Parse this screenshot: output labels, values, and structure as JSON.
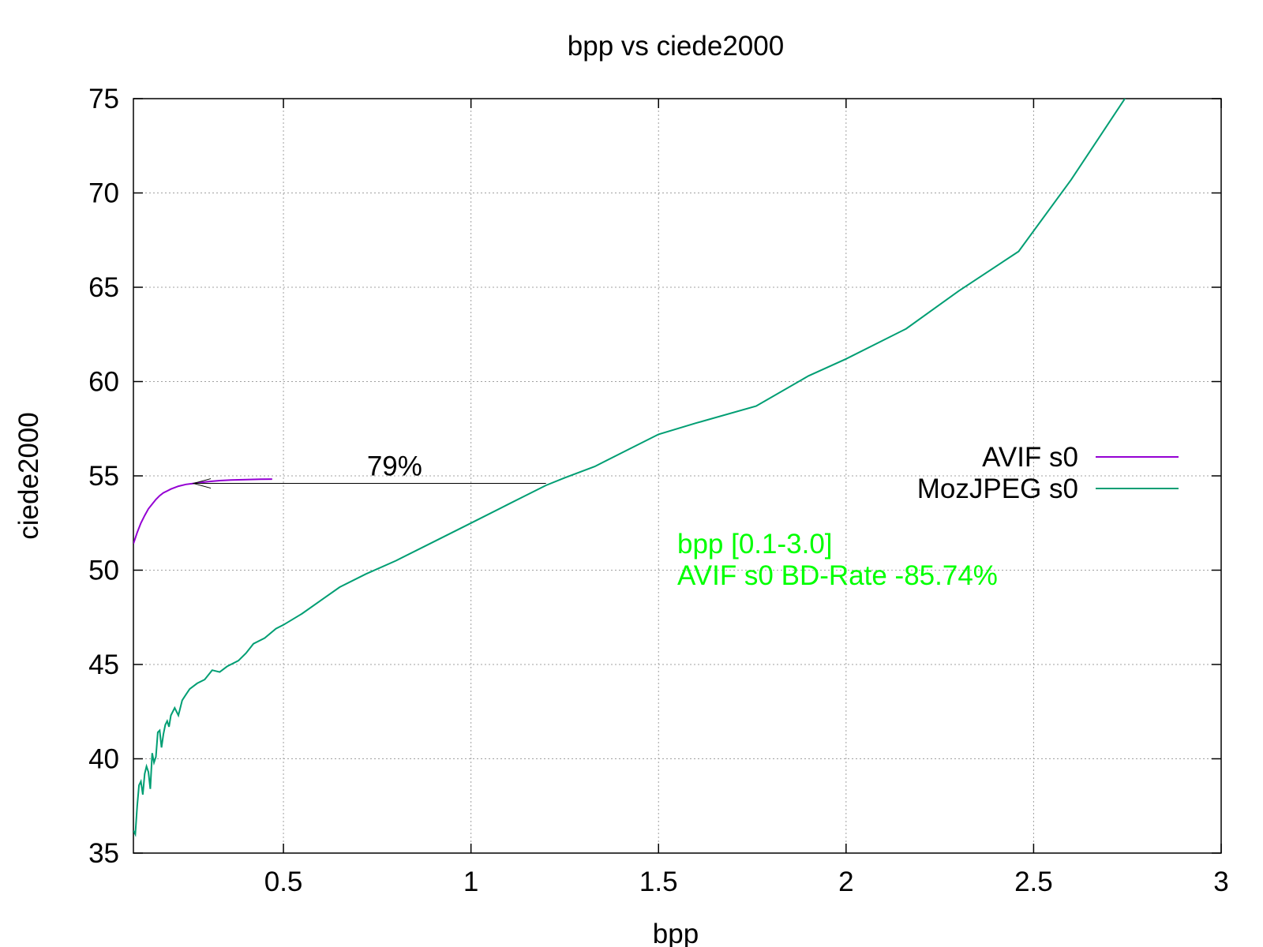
{
  "chart_data": {
    "type": "line",
    "title": "bpp vs ciede2000",
    "xlabel": "bpp",
    "ylabel": "ciede2000",
    "xlim": [
      0.1,
      3
    ],
    "ylim": [
      35,
      75
    ],
    "xticks": [
      {
        "value": 0.5,
        "label": "0.5"
      },
      {
        "value": 1,
        "label": "1"
      },
      {
        "value": 1.5,
        "label": "1.5"
      },
      {
        "value": 2,
        "label": "2"
      },
      {
        "value": 2.5,
        "label": "2.5"
      },
      {
        "value": 3,
        "label": "3"
      }
    ],
    "yticks": [
      {
        "value": 35,
        "label": "35"
      },
      {
        "value": 40,
        "label": "40"
      },
      {
        "value": 45,
        "label": "45"
      },
      {
        "value": 50,
        "label": "50"
      },
      {
        "value": 55,
        "label": "55"
      },
      {
        "value": 60,
        "label": "60"
      },
      {
        "value": 65,
        "label": "65"
      },
      {
        "value": 70,
        "label": "70"
      },
      {
        "value": 75,
        "label": "75"
      }
    ],
    "grid": true,
    "legend_position": "right",
    "series": [
      {
        "name": "AVIF s0",
        "color": "#9400d3",
        "x": [
          0.1,
          0.11,
          0.12,
          0.13,
          0.14,
          0.15,
          0.16,
          0.17,
          0.18,
          0.19,
          0.2,
          0.22,
          0.24,
          0.26,
          0.28,
          0.3,
          0.33,
          0.36,
          0.4,
          0.44,
          0.47
        ],
        "y": [
          51.4,
          52.0,
          52.5,
          52.9,
          53.25,
          53.5,
          53.75,
          53.95,
          54.1,
          54.2,
          54.3,
          54.45,
          54.55,
          54.6,
          54.65,
          54.7,
          54.75,
          54.78,
          54.8,
          54.82,
          54.83
        ]
      },
      {
        "name": "MozJPEG s0",
        "color": "#009e73",
        "x": [
          0.1,
          0.105,
          0.11,
          0.115,
          0.12,
          0.125,
          0.13,
          0.135,
          0.14,
          0.145,
          0.15,
          0.155,
          0.16,
          0.165,
          0.17,
          0.175,
          0.18,
          0.185,
          0.19,
          0.195,
          0.2,
          0.21,
          0.22,
          0.23,
          0.24,
          0.25,
          0.27,
          0.29,
          0.31,
          0.33,
          0.35,
          0.38,
          0.4,
          0.42,
          0.45,
          0.48,
          0.5,
          0.55,
          0.6,
          0.65,
          0.72,
          0.8,
          0.9,
          1.0,
          1.1,
          1.2,
          1.25,
          1.33,
          1.42,
          1.5,
          1.6,
          1.76,
          1.9,
          2.0,
          2.16,
          2.3,
          2.46,
          2.6,
          2.75
        ],
        "y": [
          36.2,
          36.0,
          37.5,
          38.6,
          38.8,
          38.1,
          39.2,
          39.6,
          39.3,
          38.4,
          40.3,
          39.8,
          40.1,
          41.4,
          41.5,
          40.6,
          41.3,
          41.8,
          42.0,
          41.7,
          42.3,
          42.7,
          42.3,
          43.1,
          43.4,
          43.7,
          44.0,
          44.2,
          44.7,
          44.6,
          44.9,
          45.2,
          45.6,
          46.1,
          46.4,
          46.9,
          47.1,
          47.7,
          48.4,
          49.1,
          49.8,
          50.5,
          51.5,
          52.5,
          53.5,
          54.5,
          54.9,
          55.5,
          56.4,
          57.2,
          57.8,
          58.7,
          60.3,
          61.2,
          62.8,
          64.8,
          66.9,
          70.7,
          75.2
        ]
      }
    ],
    "annotations": {
      "arrow_label": "79%",
      "arrow_y": 54.6,
      "arrow_x_from": 1.2,
      "arrow_x_to": 0.26,
      "note_lines": [
        "bpp [0.1-3.0]",
        "AVIF s0 BD-Rate -85.74%"
      ],
      "note_color": "#00ff00",
      "note_x": 1.55,
      "note_y": 50.9
    }
  }
}
